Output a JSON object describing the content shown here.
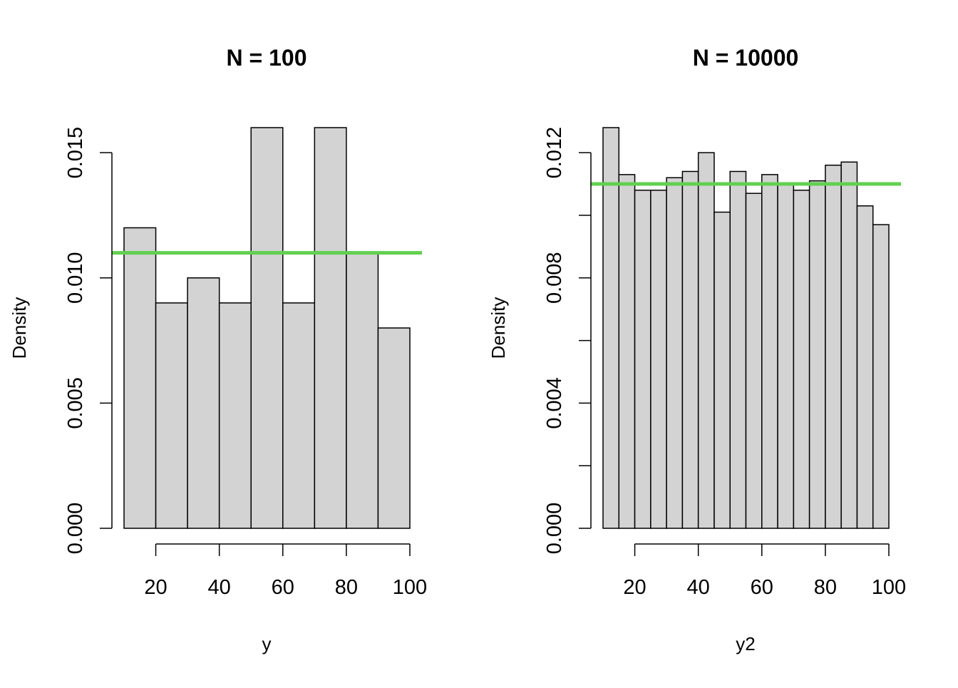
{
  "colors": {
    "bar_fill": "#d3d3d3",
    "bar_stroke": "#000000",
    "reference_line": "#61d04f",
    "background": "#ffffff"
  },
  "chart_data": [
    {
      "type": "bar",
      "subtype": "histogram",
      "title": "N = 100",
      "xlabel": "y",
      "ylabel": "Density",
      "bin_edges": [
        10,
        20,
        30,
        40,
        50,
        60,
        70,
        80,
        90,
        100
      ],
      "values": [
        0.012,
        0.009,
        0.01,
        0.009,
        0.016,
        0.009,
        0.016,
        0.011,
        0.008
      ],
      "reference_line": {
        "y": 0.011
      },
      "xlim": [
        10,
        100
      ],
      "ylim": [
        0,
        0.016
      ],
      "xticks": [
        20,
        40,
        60,
        80,
        100
      ],
      "xtick_labels": [
        "20",
        "40",
        "60",
        "80",
        "100"
      ],
      "yticks": [
        0,
        0.005,
        0.01,
        0.015
      ],
      "ytick_labels": [
        "0.000",
        "0.005",
        "0.010",
        "0.015"
      ],
      "grid": false,
      "legend": "none"
    },
    {
      "type": "bar",
      "subtype": "histogram",
      "title": "N = 10000",
      "xlabel": "y2",
      "ylabel": "Density",
      "bin_edges": [
        10,
        15,
        20,
        25,
        30,
        35,
        40,
        45,
        50,
        55,
        60,
        65,
        70,
        75,
        80,
        85,
        90,
        95,
        100
      ],
      "values": [
        0.0128,
        0.0113,
        0.0108,
        0.0108,
        0.0112,
        0.0114,
        0.012,
        0.0101,
        0.0114,
        0.0107,
        0.0113,
        0.011,
        0.0108,
        0.0111,
        0.0116,
        0.0117,
        0.0103,
        0.0097
      ],
      "reference_line": {
        "y": 0.011
      },
      "xlim": [
        10,
        100
      ],
      "ylim": [
        0,
        0.0128
      ],
      "xticks": [
        20,
        40,
        60,
        80,
        100
      ],
      "xtick_labels": [
        "20",
        "40",
        "60",
        "80",
        "100"
      ],
      "yticks": [
        0,
        0.002,
        0.004,
        0.006,
        0.008,
        0.01,
        0.012
      ],
      "ytick_labels": [
        "0.000",
        "",
        "0.004",
        "",
        "0.008",
        "",
        "0.012"
      ],
      "grid": false,
      "legend": "none"
    }
  ]
}
